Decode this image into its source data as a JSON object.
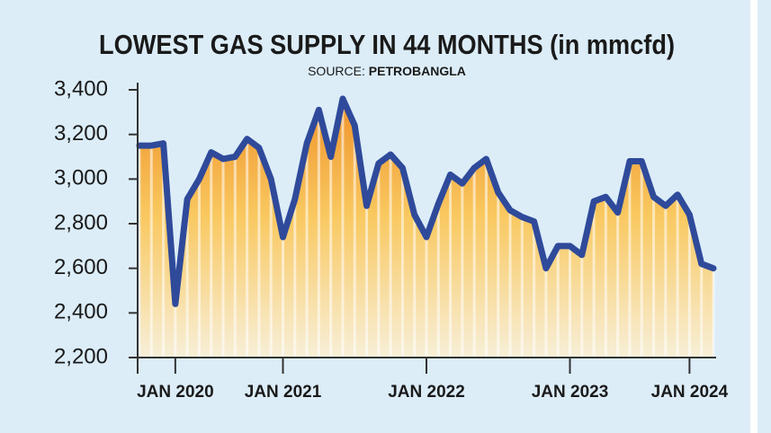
{
  "chart_data": {
    "type": "line",
    "title": "LOWEST GAS SUPPLY IN 44 MONTHS (in mmcfd)",
    "source_label": "SOURCE:",
    "source": "PETROBANGLA",
    "categories": [
      null,
      null,
      null,
      "JAN 2020",
      null,
      null,
      null,
      null,
      null,
      null,
      null,
      null,
      "JAN 2021",
      null,
      null,
      null,
      null,
      null,
      null,
      null,
      null,
      null,
      null,
      null,
      "JAN 2022",
      null,
      null,
      null,
      null,
      null,
      null,
      null,
      null,
      null,
      null,
      null,
      "JAN 2023",
      null,
      null,
      null,
      null,
      null,
      null,
      null,
      null,
      null,
      "JAN 2024",
      null,
      null
    ],
    "series": [
      {
        "color": "#2f4a9a",
        "values": [
          3150,
          3150,
          3160,
          2440,
          2910,
          3000,
          3120,
          3090,
          3100,
          3180,
          3140,
          3000,
          2740,
          2910,
          3160,
          3310,
          3100,
          3360,
          3240,
          2880,
          3070,
          3110,
          3050,
          2840,
          2740,
          2890,
          3020,
          2980,
          3050,
          3090,
          2940,
          2860,
          2830,
          2810,
          2600,
          2700,
          2700,
          2660,
          2900,
          2920,
          2850,
          3080,
          3080,
          2920,
          2880,
          2930,
          2840,
          2620,
          2600
        ]
      }
    ],
    "ylim": [
      2200,
      3400
    ],
    "yticks": [
      {
        "value": 2200,
        "label": "2,200"
      },
      {
        "value": 2400,
        "label": "2,400"
      },
      {
        "value": 2600,
        "label": "2,600"
      },
      {
        "value": 2800,
        "label": "2,800"
      },
      {
        "value": 3000,
        "label": "3,000"
      },
      {
        "value": 3200,
        "label": "3,200"
      },
      {
        "value": 3400,
        "label": "3,400"
      }
    ],
    "grid": false
  }
}
